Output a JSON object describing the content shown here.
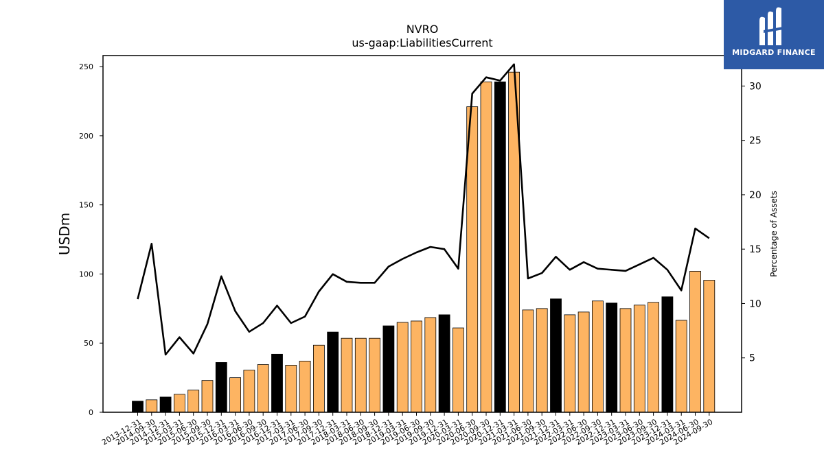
{
  "chart_data": {
    "type": "bar",
    "title": "NVRO",
    "subtitle": "us-gaap:LiabilitiesCurrent",
    "ylabel": "USDm",
    "y2label": "Percentage of Assets",
    "ylim": [
      0,
      258
    ],
    "y2lim": [
      0,
      32.8
    ],
    "yticks": [
      0,
      50,
      100,
      150,
      200,
      250
    ],
    "y2ticks": [
      5,
      10,
      15,
      20,
      25,
      30
    ],
    "grid": false,
    "categories": [
      "2013-12-31",
      "2014-09-30",
      "2014-12-31",
      "2015-03-31",
      "2015-06-30",
      "2015-09-30",
      "2015-12-31",
      "2016-03-31",
      "2016-06-30",
      "2016-09-30",
      "2016-12-31",
      "2017-03-31",
      "2017-06-30",
      "2017-09-30",
      "2017-12-31",
      "2018-03-31",
      "2018-06-30",
      "2018-09-30",
      "2018-12-31",
      "2019-03-31",
      "2019-06-30",
      "2019-09-30",
      "2019-12-31",
      "2020-03-31",
      "2020-06-30",
      "2020-09-30",
      "2020-12-31",
      "2021-03-31",
      "2021-06-30",
      "2021-09-30",
      "2021-12-31",
      "2022-03-31",
      "2022-06-30",
      "2022-09-30",
      "2022-12-31",
      "2023-03-31",
      "2023-06-30",
      "2023-09-30",
      "2023-12-31",
      "2024-03-31",
      "2024-06-30",
      "2024-09-30"
    ],
    "series": [
      {
        "kind": "bar",
        "values": [
          8,
          9,
          11,
          13,
          16,
          23,
          36,
          25,
          30.5,
          34.5,
          42,
          34,
          37,
          48.5,
          58,
          53.5,
          53.5,
          53.5,
          62.5,
          65,
          66,
          68.5,
          70.5,
          61,
          221,
          239,
          239,
          246,
          74,
          75,
          82,
          70.5,
          72.5,
          80.5,
          79,
          75,
          77.5,
          79.5,
          83.5,
          66.5,
          102,
          95.5
        ],
        "year_end_color": "#000000",
        "quarter_color": "#fdb462"
      },
      {
        "kind": "line",
        "axis": "right",
        "color": "#000000",
        "values": [
          10.4,
          15.5,
          5.3,
          6.9,
          5.4,
          8.1,
          12.5,
          9.3,
          7.4,
          8.2,
          9.8,
          8.2,
          8.8,
          11.1,
          12.7,
          12.0,
          11.9,
          11.9,
          13.4,
          14.1,
          14.7,
          15.2,
          15.0,
          13.2,
          29.3,
          30.8,
          30.5,
          32.0,
          12.3,
          12.8,
          14.3,
          13.1,
          13.8,
          13.2,
          13.1,
          13.0,
          13.6,
          14.2,
          13.1,
          11.2,
          16.9,
          16.0
        ]
      }
    ]
  },
  "logo": {
    "text": "MIDGARD FINANCE",
    "bg_color": "#2d5aa6"
  }
}
